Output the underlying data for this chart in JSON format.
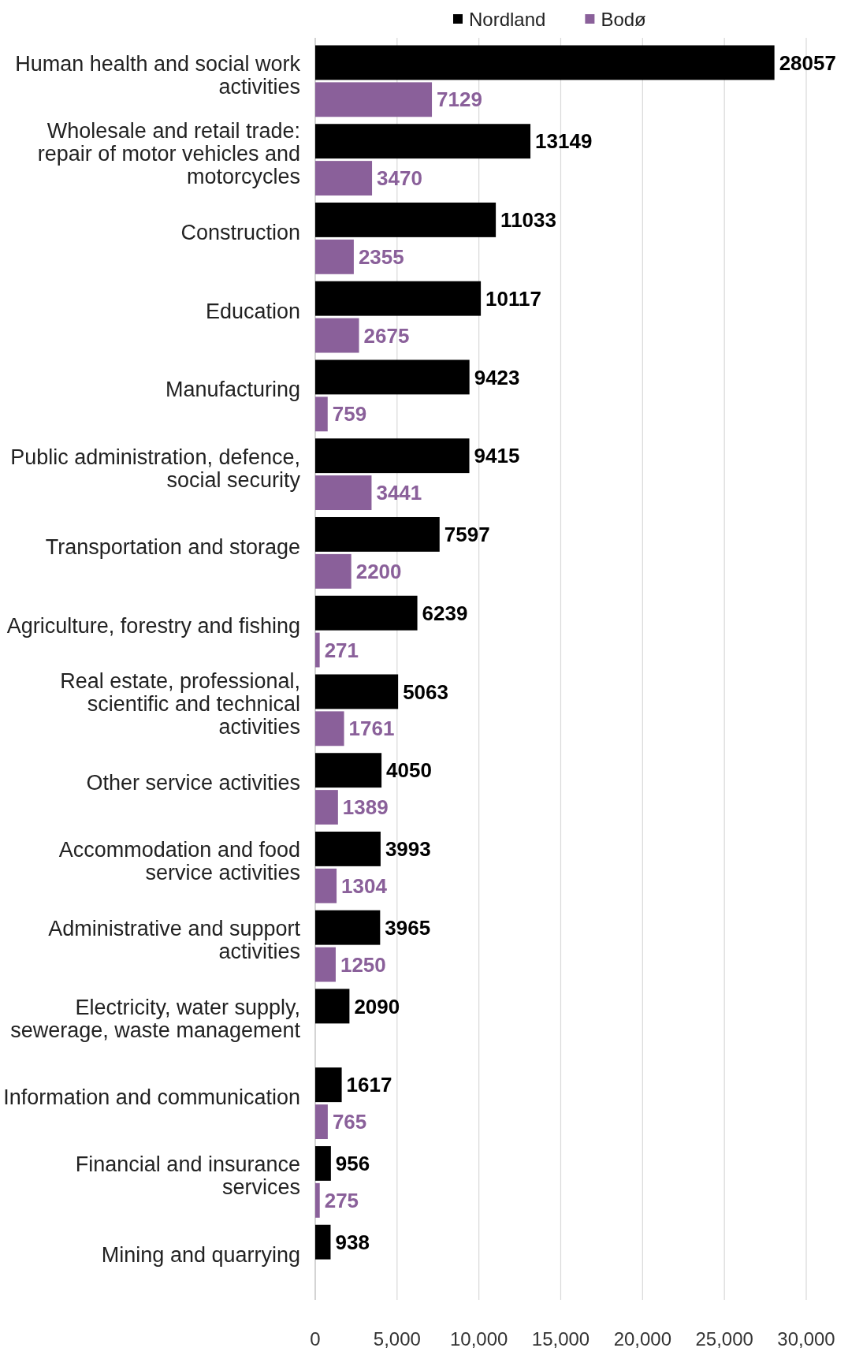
{
  "chart_data": {
    "type": "bar",
    "orientation": "horizontal",
    "categories": [
      "Human health and social work activities",
      "Wholesale and retail trade: repair of motor vehicles and motorcycles",
      "Construction",
      "Education",
      "Manufacturing",
      "Public administration, defence, social security",
      "Transportation and storage",
      "Agriculture, forestry and fishing",
      "Real estate, professional, scientific and technical activities",
      "Other service activities",
      "Accommodation and food service activities",
      "Administrative and support activities",
      "Electricity, water supply, sewerage, waste management",
      "Information and communication",
      "Financial and insurance services",
      "Mining and quarrying"
    ],
    "series": [
      {
        "name": "Nordland",
        "color": "#000000",
        "values": [
          28057,
          13149,
          11033,
          10117,
          9423,
          9415,
          7597,
          6239,
          5063,
          4050,
          3993,
          3965,
          2090,
          1617,
          956,
          938
        ]
      },
      {
        "name": "Bodø",
        "color": "#8a609a",
        "values": [
          7129,
          3470,
          2355,
          2675,
          759,
          3441,
          2200,
          271,
          1761,
          1389,
          1304,
          1250,
          null,
          765,
          275,
          null
        ]
      }
    ],
    "xlim": [
      0,
      30000
    ],
    "xticks": [
      {
        "value": 0,
        "label": "0"
      },
      {
        "value": 5000,
        "label": "5,000"
      },
      {
        "value": 10000,
        "label": "10,000"
      },
      {
        "value": 15000,
        "label": "15,000"
      },
      {
        "value": 20000,
        "label": "20,000"
      },
      {
        "value": 25000,
        "label": "25,000"
      },
      {
        "value": 30000,
        "label": "30,000"
      }
    ],
    "grid": "x",
    "legend": "top right",
    "data_labels": true
  }
}
